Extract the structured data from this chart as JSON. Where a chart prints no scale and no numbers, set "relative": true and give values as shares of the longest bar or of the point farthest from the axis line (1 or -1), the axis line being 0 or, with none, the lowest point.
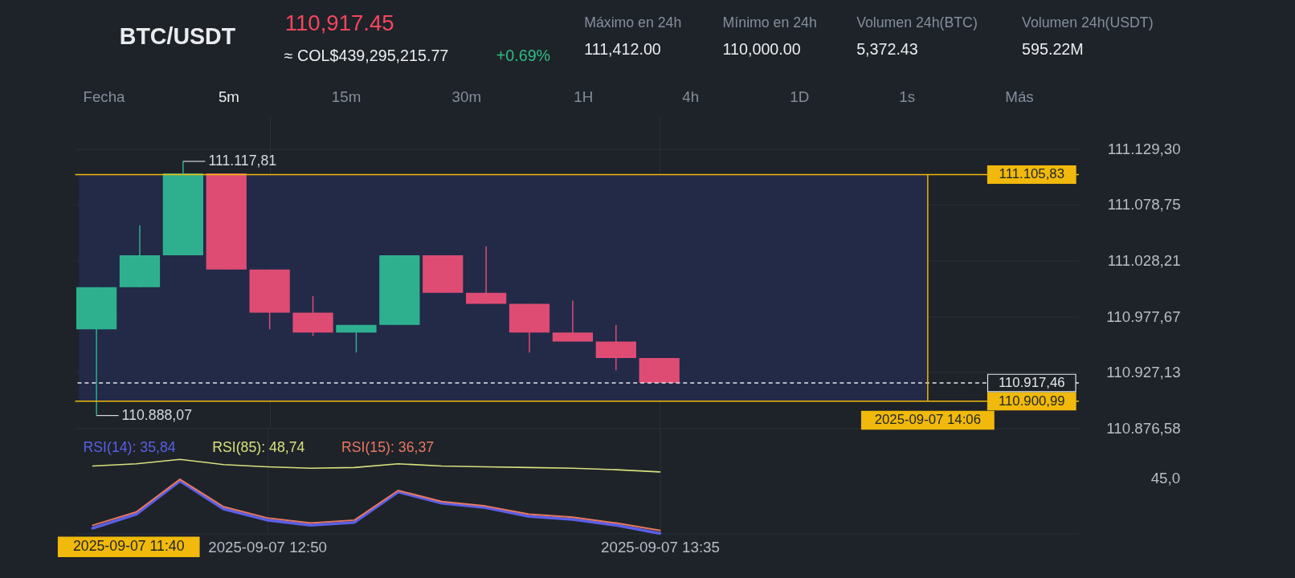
{
  "chart_data": [
    {
      "type": "other",
      "title": "BTC/USDT",
      "annotations": [
        "110,917.45",
        "≈ COL$439,295,215.77",
        "+0.69%",
        "Máximo en 24h",
        "111,412.00",
        "Mínimo en 24h",
        "110,000.00",
        "Volumen 24h(BTC)",
        "5,372.43",
        "Volumen 24h(USDT)",
        "595.22M",
        "Fecha",
        "5m",
        "15m",
        "30m",
        "1H",
        "4h",
        "1D",
        "1s",
        "Más"
      ]
    },
    {
      "type": "candlestick",
      "x": [
        "2025-09-07T12:30",
        "2025-09-07T12:35",
        "2025-09-07T12:40",
        "2025-09-07T12:45",
        "2025-09-07T12:50",
        "2025-09-07T12:55",
        "2025-09-07T13:00",
        "2025-09-07T13:05",
        "2025-09-07T13:10",
        "2025-09-07T13:15",
        "2025-09-07T13:20",
        "2025-09-07T13:25",
        "2025-09-07T13:30",
        "2025-09-07T13:35"
      ],
      "ohlc": [
        [
          110966,
          111004,
          110888.07,
          111004
        ],
        [
          111004,
          111060,
          111004,
          111033
        ],
        [
          111033,
          111117.81,
          111033,
          111107
        ],
        [
          111107,
          111107,
          111020,
          111020
        ],
        [
          111020,
          111020,
          110966,
          110981
        ],
        [
          110981,
          110996,
          110960,
          110963
        ],
        [
          110963,
          110970,
          110945,
          110970
        ],
        [
          110970,
          111033,
          110970,
          111033
        ],
        [
          111033,
          111033,
          110999,
          110999
        ],
        [
          110999,
          111041,
          110989,
          110989
        ],
        [
          110989,
          110989,
          110945,
          110963
        ],
        [
          110963,
          110992,
          110955,
          110955
        ],
        [
          110955,
          110970,
          110929,
          110940
        ],
        [
          110940,
          110940,
          110917.46,
          110917.46
        ]
      ],
      "colors": [
        "#2eb08f",
        "#2eb08f",
        "#2eb08f",
        "#de4c74",
        "#de4c74",
        "#de4c74",
        "#2eb08f",
        "#2eb08f",
        "#de4c74",
        "#de4c74",
        "#de4c74",
        "#de4c74",
        "#de4c74",
        "#de4c74"
      ],
      "xlim": [
        "2025-09-07T12:28",
        "2025-09-07T14:23"
      ],
      "xticks": [
        "2025-09-07T12:50",
        "2025-09-07T13:35"
      ],
      "ylim": [
        110876.58,
        111159
      ],
      "yticks": [
        {
          "value": 110876.58,
          "label": "110.876,58"
        },
        {
          "value": 110927.13,
          "label": "110.927,13"
        },
        {
          "value": 110977.67,
          "label": "110.977,67"
        },
        {
          "value": 111028.21,
          "label": "111.028,21"
        },
        {
          "value": 111078.75,
          "label": "111.078,75"
        },
        {
          "value": 111129.3,
          "label": "111.129,30"
        }
      ],
      "tick_labels": "y",
      "grid": true,
      "bands": [
        {
          "axis": "y",
          "from": 110900.99,
          "to": 111105.83,
          "color": "#232b4d"
        }
      ],
      "ref_lines": [
        {
          "axis": "y",
          "value": 111105.83,
          "label": "111.105,83",
          "color": "#f0b90b"
        },
        {
          "axis": "y",
          "value": 110900.99,
          "label": "110.900,99",
          "color": "#f0b90b"
        },
        {
          "axis": "y",
          "value": 110917.46,
          "label": "110.917,46",
          "color": "#e6e8ea",
          "line_style": "dashed"
        },
        {
          "axis": "x",
          "value": "2025-09-07T14:06",
          "label": "2025-09-07 14:06",
          "color": "#f0b90b"
        }
      ],
      "annotations": [
        {
          "text": "111.117,81",
          "x": "2025-09-07T12:40",
          "y": 111117.81
        },
        {
          "text": "110.888,07",
          "x": "2025-09-07T12:30",
          "y": 110888.07
        },
        "2025-09-07 11:40"
      ]
    },
    {
      "type": "line",
      "relative": true,
      "x": [
        "2025-09-07T12:30",
        "2025-09-07T12:35",
        "2025-09-07T12:40",
        "2025-09-07T12:45",
        "2025-09-07T12:50",
        "2025-09-07T12:55",
        "2025-09-07T13:00",
        "2025-09-07T13:05",
        "2025-09-07T13:10",
        "2025-09-07T13:15",
        "2025-09-07T13:20",
        "2025-09-07T13:25",
        "2025-09-07T13:30",
        "2025-09-07T13:35"
      ],
      "series": [
        {
          "name": "RSI(14): 35,84",
          "color": "#5b5fe6",
          "values": [
            0.07,
            0.26,
            0.71,
            0.33,
            0.18,
            0.11,
            0.15,
            0.56,
            0.41,
            0.35,
            0.23,
            0.19,
            0.11,
            0.0
          ]
        },
        {
          "name": "RSI(85): 48,74",
          "color": "#d8e07c",
          "values": [
            0.91,
            0.94,
            1.0,
            0.93,
            0.9,
            0.88,
            0.89,
            0.94,
            0.91,
            0.9,
            0.89,
            0.88,
            0.86,
            0.83
          ]
        },
        {
          "name": "RSI(15): 36,37",
          "color": "#e8775f",
          "values": [
            0.11,
            0.29,
            0.73,
            0.36,
            0.21,
            0.14,
            0.18,
            0.58,
            0.43,
            0.37,
            0.26,
            0.22,
            0.14,
            0.04
          ]
        }
      ],
      "xlim": [
        "2025-09-07T12:28",
        "2025-09-07T14:23"
      ],
      "xticks": [
        {
          "value": "2025-09-07T12:50",
          "label": "2025-09-07 12:50"
        },
        {
          "value": "2025-09-07T13:35",
          "label": "2025-09-07 13:35"
        }
      ],
      "annotations": [
        "45,0"
      ],
      "grid": "x",
      "legend": "top left"
    }
  ]
}
